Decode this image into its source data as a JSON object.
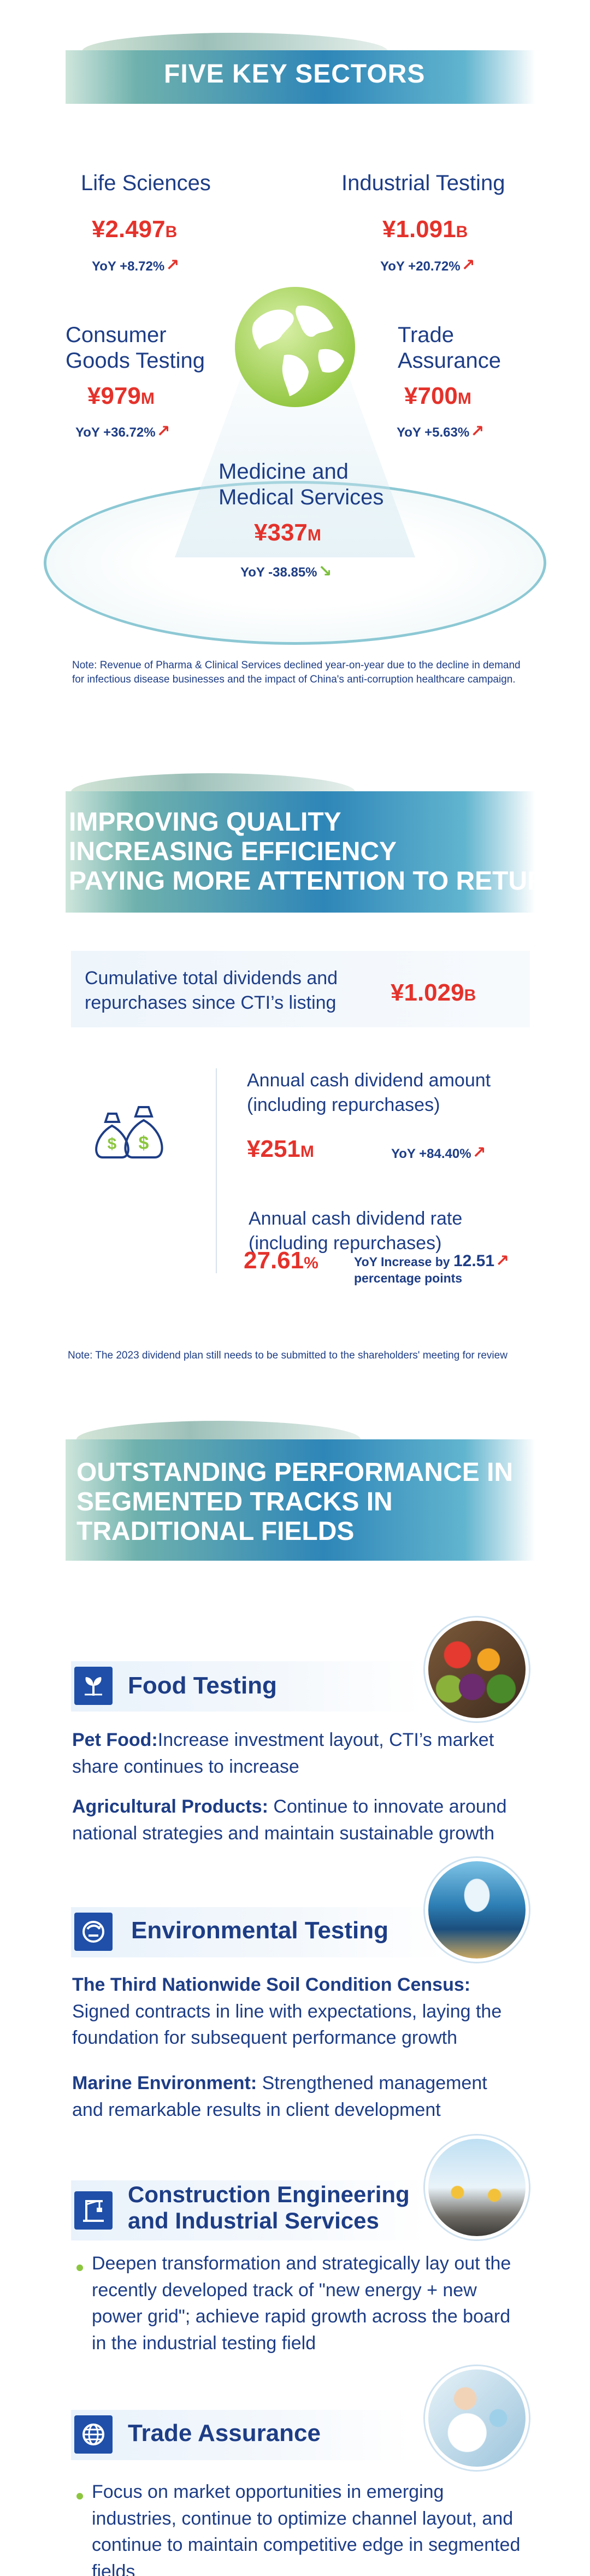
{
  "section1": {
    "title": "FIVE KEY SECTORS",
    "sectors": [
      {
        "name": "Life Sciences",
        "amount": "¥2.497",
        "unit": "B",
        "yoy": "YoY +8.72%",
        "trend": "up"
      },
      {
        "name": "Industrial Testing",
        "amount": "¥1.091",
        "unit": "B",
        "yoy": "YoY +20.72%",
        "trend": "up"
      },
      {
        "name_line1": "Consumer",
        "name_line2": "Goods Testing",
        "amount": "¥979",
        "unit": "M",
        "yoy": "YoY +36.72%",
        "trend": "up"
      },
      {
        "name_line1": "Trade",
        "name_line2": "Assurance",
        "amount": "¥700",
        "unit": "M",
        "yoy": "YoY +5.63%",
        "trend": "up"
      },
      {
        "name_line1": "Medicine and",
        "name_line2": "Medical Services",
        "amount": "¥337",
        "unit": "M",
        "yoy": "YoY -38.85%",
        "trend": "down"
      }
    ],
    "note": "Note: Revenue of Pharma & Clinical Services declined year-on-year due to the decline in demand for infectious disease businesses and the impact of China's anti-corruption healthcare campaign."
  },
  "section2": {
    "title_line1": "IMPROVING QUALITY",
    "title_line2": "INCREASING EFFICIENCY",
    "title_line3": "PAYING MORE ATTENTION TO RETURNS",
    "cumulative_label_line1": "Cumulative total dividends and",
    "cumulative_label_line2": "repurchases since CTI’s listing",
    "cumulative_amount": "¥1.029",
    "cumulative_unit": "B",
    "annual_label_line1": "Annual cash dividend amount",
    "annual_label_line2": "(including repurchases)",
    "annual_amount": "¥251",
    "annual_unit": "M",
    "annual_yoy": "YoY +84.40%",
    "rate_label_line1": "Annual cash dividend rate",
    "rate_label_line2": "(including repurchases)",
    "rate_value": "27.61",
    "rate_unit": "%",
    "rate_yoy_prefix": "YoY Increase by ",
    "rate_yoy_value": "12.51",
    "rate_yoy_suffix": "percentage points",
    "note": "Note: The 2023 dividend plan still needs to be submitted to the shareholders' meeting for review"
  },
  "section3": {
    "title_line1": "OUTSTANDING PERFORMANCE IN",
    "title_line2": "SEGMENTED TRACKS IN",
    "title_line3": "TRADITIONAL FIELDS",
    "food": {
      "title": "Food Testing",
      "p1_head": "Pet Food:",
      "p1_body": "Increase investment layout, CTI’s market share continues to increase",
      "p2_head": "Agricultural Products:",
      "p2_body": " Continue to innovate around national strategies and maintain sustainable growth"
    },
    "env": {
      "title": "Environmental Testing",
      "p1_head": "The Third Nationwide Soil Condition Census:",
      "p1_body": " Signed contracts in line with expectations, laying the foundation for subsequent performance growth",
      "p2_head": "Marine Environment:",
      "p2_body": " Strengthened management and remarkable results in client development"
    },
    "construction": {
      "title_line1": "Construction Engineering",
      "title_line2": "and Industrial Services",
      "bullet": "Deepen transformation and strategically lay out the recently developed track of \"new energy + new power grid\"; achieve rapid growth across the board in the industrial testing field"
    },
    "trade": {
      "title": "Trade Assurance",
      "bullet": "Focus on market opportunities in emerging industries, continue to optimize channel layout, and continue to maintain competitive edge in segmented fields"
    }
  }
}
